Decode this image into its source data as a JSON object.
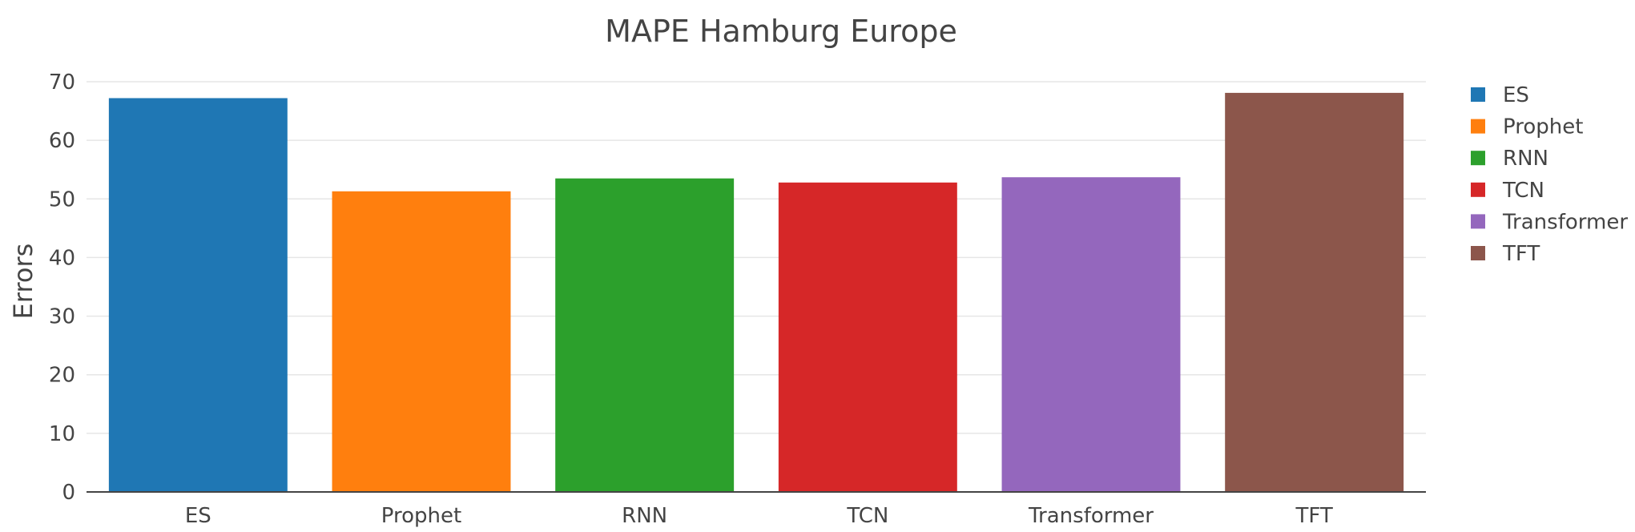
{
  "chart_data": {
    "type": "bar",
    "title": "MAPE Hamburg Europe",
    "xlabel": "",
    "ylabel": "Errors",
    "categories": [
      "ES",
      "Prophet",
      "RNN",
      "TCN",
      "Transformer",
      "TFT"
    ],
    "values": [
      67.2,
      51.3,
      53.5,
      52.8,
      53.7,
      68.1
    ],
    "colors": [
      "#1f77b4",
      "#ff7f0e",
      "#2ca02c",
      "#d62728",
      "#9467bd",
      "#8c564b"
    ],
    "yticks": [
      "0",
      "10",
      "20",
      "30",
      "40",
      "50",
      "60",
      "70"
    ],
    "ylim": [
      0,
      70
    ],
    "grid": true,
    "legend": {
      "placement": "right",
      "entries": [
        "ES",
        "Prophet",
        "RNN",
        "TCN",
        "Transformer",
        "TFT"
      ]
    }
  }
}
